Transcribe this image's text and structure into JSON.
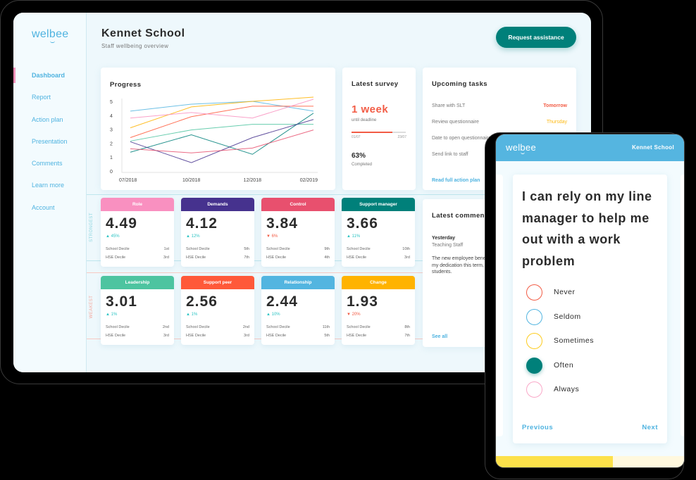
{
  "tablet": {
    "logo": "welbee",
    "sidebar": {
      "items": [
        {
          "label": "Dashboard",
          "active": true
        },
        {
          "label": "Report"
        },
        {
          "label": "Action plan"
        },
        {
          "label": "Presentation"
        },
        {
          "label": "Comments"
        },
        {
          "label": "Learn more"
        },
        {
          "label": "Account"
        }
      ]
    },
    "header": {
      "title": "Kennet School",
      "subtitle": "Staff wellbeing overview",
      "request_button": "Request assistance"
    },
    "progress": {
      "title": "Progress"
    },
    "survey": {
      "title": "Latest survey",
      "big": "1 week",
      "until": "until deadline",
      "start_date": "01/07",
      "end_date": "23/07",
      "bar_percent": 75,
      "completed_pct": "63%",
      "completed_label": "Completed"
    },
    "tasks": {
      "title": "Upcoming tasks",
      "items": [
        {
          "name": "Share with SLT",
          "due": "Tomorrow",
          "color": "#f25c45"
        },
        {
          "name": "Review questionnaire",
          "due": "Thursday",
          "color": "#fdb913"
        },
        {
          "name": "Date to open questionnaire",
          "due": ""
        },
        {
          "name": "Send link to staff",
          "due": ""
        }
      ],
      "link": "Read full action plan"
    },
    "comments": {
      "title": "Latest comments",
      "when": "Yesterday",
      "who": "Teaching Staff",
      "text": "The new employee benefits have had a positive impact on my dedication this term, which I think is clear to all of my students.",
      "link": "See all"
    },
    "bands": {
      "strongest": "STRONGEST",
      "weakest": "WEAKEST"
    },
    "scores": [
      {
        "name": "Role",
        "value": "4.49",
        "change": "45%",
        "dir": "up",
        "color": "#f990c0",
        "school_decile_label": "School Decile",
        "school_decile": "1st",
        "hse_decile_label": "HSE Decile",
        "hse_decile": "3rd"
      },
      {
        "name": "Demands",
        "value": "4.12",
        "change": "12%",
        "dir": "up",
        "color": "#46328e",
        "school_decile_label": "School Decile",
        "school_decile": "5th",
        "hse_decile_label": "HSE Decile",
        "hse_decile": "7th"
      },
      {
        "name": "Control",
        "value": "3.84",
        "change": "6%",
        "dir": "down",
        "color": "#e8506e",
        "school_decile_label": "School Decile",
        "school_decile": "9th",
        "hse_decile_label": "HSE Decile",
        "hse_decile": "4th"
      },
      {
        "name": "Support manager",
        "value": "3.66",
        "change": "11%",
        "dir": "up",
        "color": "#00807a",
        "school_decile_label": "School Decile",
        "school_decile": "10th",
        "hse_decile_label": "HSE Decile",
        "hse_decile": "3rd"
      },
      {
        "name": "Leadership",
        "value": "3.01",
        "change": "1%",
        "dir": "up",
        "color": "#4dc4a0",
        "school_decile_label": "School Decile",
        "school_decile": "2nd",
        "hse_decile_label": "HSE Decile",
        "hse_decile": "3rd"
      },
      {
        "name": "Support peer",
        "value": "2.56",
        "change": "1%",
        "dir": "up",
        "color": "#ff5939",
        "school_decile_label": "School Decile",
        "school_decile": "2nd",
        "hse_decile_label": "HSE Decile",
        "hse_decile": "3rd"
      },
      {
        "name": "Relationship",
        "value": "2.44",
        "change": "10%",
        "dir": "up",
        "color": "#53b5e0",
        "school_decile_label": "School Decile",
        "school_decile": "11th",
        "hse_decile_label": "HSE Decile",
        "hse_decile": "5th"
      },
      {
        "name": "Change",
        "value": "1.93",
        "change": "20%",
        "dir": "down",
        "color": "#ffb300",
        "school_decile_label": "School Decile",
        "school_decile": "8th",
        "hse_decile_label": "HSE Decile",
        "hse_decile": "7th"
      }
    ]
  },
  "chart_data": {
    "type": "line",
    "title": "Progress",
    "xlabel": "",
    "ylabel": "",
    "x": [
      "07/2018",
      "10/2018",
      "12/2018",
      "02/2019"
    ],
    "yticks": [
      0,
      1,
      2,
      3,
      4,
      5
    ],
    "ylim": [
      0,
      5
    ],
    "grid": false,
    "legend": "none",
    "series": [
      {
        "name": "Relationship",
        "color": "#53b5e0",
        "values": [
          4.3,
          4.8,
          5.0,
          4.3
        ]
      },
      {
        "name": "Change",
        "color": "#ffb300",
        "values": [
          3.1,
          4.6,
          5.0,
          5.3
        ]
      },
      {
        "name": "Support peer",
        "color": "#ff5939",
        "values": [
          2.4,
          3.9,
          4.65,
          4.65
        ]
      },
      {
        "name": "Role",
        "color": "#f990c0",
        "values": [
          3.8,
          4.2,
          3.8,
          5.15
        ]
      },
      {
        "name": "Leadership",
        "color": "#4dc4a0",
        "values": [
          2.15,
          2.95,
          3.35,
          3.35
        ]
      },
      {
        "name": "Support manager",
        "color": "#00807a",
        "values": [
          1.35,
          2.6,
          1.2,
          4.15
        ]
      },
      {
        "name": "Demands",
        "color": "#46328e",
        "values": [
          2.1,
          0.6,
          2.4,
          3.7
        ]
      },
      {
        "name": "Control",
        "color": "#e8506e",
        "values": [
          1.6,
          1.3,
          1.65,
          2.95
        ]
      }
    ]
  },
  "phone": {
    "logo": "welbee",
    "school": "Kennet School",
    "question": "I can rely on my line manager to help me out with a work problem",
    "options": [
      {
        "label": "Never",
        "color": "#f25c45",
        "selected": false
      },
      {
        "label": "Seldom",
        "color": "#53b5e0",
        "selected": false
      },
      {
        "label": "Sometimes",
        "color": "#fdcc1f",
        "selected": false
      },
      {
        "label": "Often",
        "color": "#00807a",
        "selected": true
      },
      {
        "label": "Always",
        "color": "#f9a8c8",
        "selected": false
      }
    ],
    "previous": "Previous",
    "next": "Next",
    "progress_percent": 62
  }
}
